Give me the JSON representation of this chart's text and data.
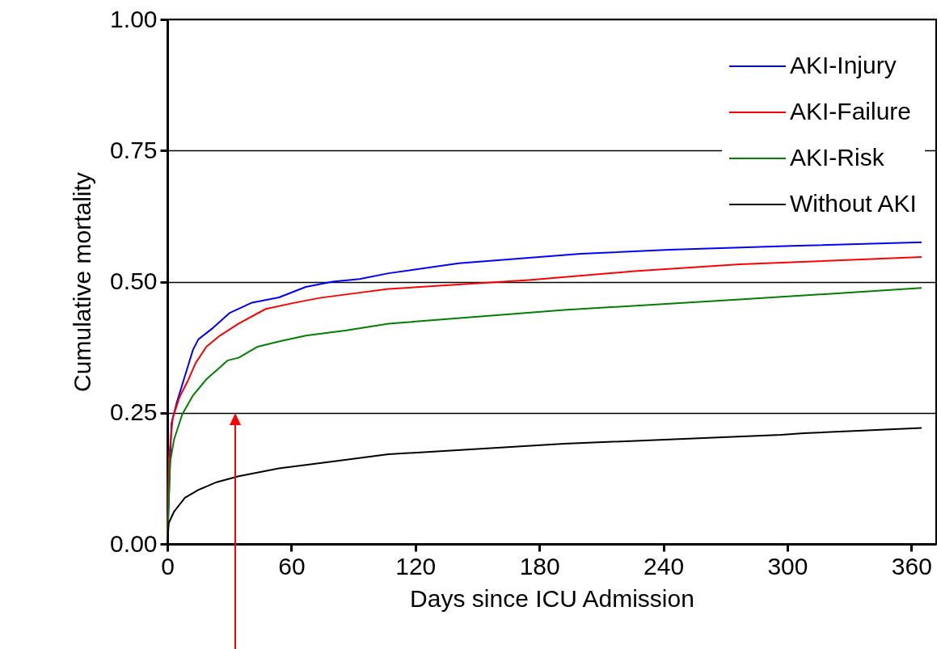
{
  "chart_data": {
    "type": "line",
    "xlabel": "Days since ICU Admission",
    "ylabel": "Cumulative mortality",
    "xlim": [
      0,
      372
    ],
    "ylim": [
      0,
      1
    ],
    "xticks": [
      0,
      60,
      120,
      180,
      240,
      300,
      360
    ],
    "yticks": [
      {
        "value": 0,
        "label": "0.00"
      },
      {
        "value": 0.25,
        "label": "0.25"
      },
      {
        "value": 0.5,
        "label": "0.50"
      },
      {
        "value": 0.75,
        "label": "0.75"
      },
      {
        "value": 1,
        "label": "1.00"
      }
    ],
    "grid": "y",
    "legend": "top right",
    "series": [
      {
        "name": "AKI-Injury",
        "color": "#0000ff",
        "x": [
          0,
          2,
          4.6,
          8.5,
          12.4,
          15,
          21.5,
          30,
          41,
          54,
          67,
          80,
          93,
          107,
          141,
          200,
          243,
          302,
          365
        ],
        "values": [
          0,
          0.23,
          0.27,
          0.32,
          0.37,
          0.39,
          0.41,
          0.44,
          0.46,
          0.47,
          0.49,
          0.5,
          0.505,
          0.516,
          0.535,
          0.553,
          0.561,
          0.568,
          0.575
        ]
      },
      {
        "name": "AKI-Failure",
        "color": "#ff0000",
        "x": [
          0,
          0.7,
          2.6,
          5.9,
          9.8,
          13.7,
          18.9,
          25.4,
          34.5,
          47.6,
          60.6,
          73.7,
          93,
          107,
          175,
          226,
          277,
          365
        ],
        "values": [
          0,
          0.16,
          0.24,
          0.28,
          0.31,
          0.345,
          0.376,
          0.397,
          0.42,
          0.448,
          0.459,
          0.469,
          0.479,
          0.486,
          0.503,
          0.52,
          0.533,
          0.547
        ]
      },
      {
        "name": "AKI-Risk",
        "color": "#008000",
        "x": [
          0,
          1.3,
          3.3,
          7.2,
          12.4,
          18.9,
          29.3,
          34.5,
          43.7,
          54,
          67,
          86.7,
          107,
          192,
          277,
          365
        ],
        "values": [
          0,
          0.155,
          0.2,
          0.247,
          0.283,
          0.314,
          0.35,
          0.355,
          0.376,
          0.386,
          0.397,
          0.407,
          0.42,
          0.446,
          0.466,
          0.488
        ]
      },
      {
        "name": "Without AKI",
        "color": "#000000",
        "x": [
          0,
          0.7,
          3.3,
          8.5,
          15,
          24,
          34.5,
          54,
          80,
          107,
          192,
          297,
          308,
          365
        ],
        "values": [
          0,
          0.04,
          0.062,
          0.088,
          0.103,
          0.118,
          0.129,
          0.144,
          0.157,
          0.171,
          0.191,
          0.208,
          0.211,
          0.221
        ]
      }
    ]
  }
}
